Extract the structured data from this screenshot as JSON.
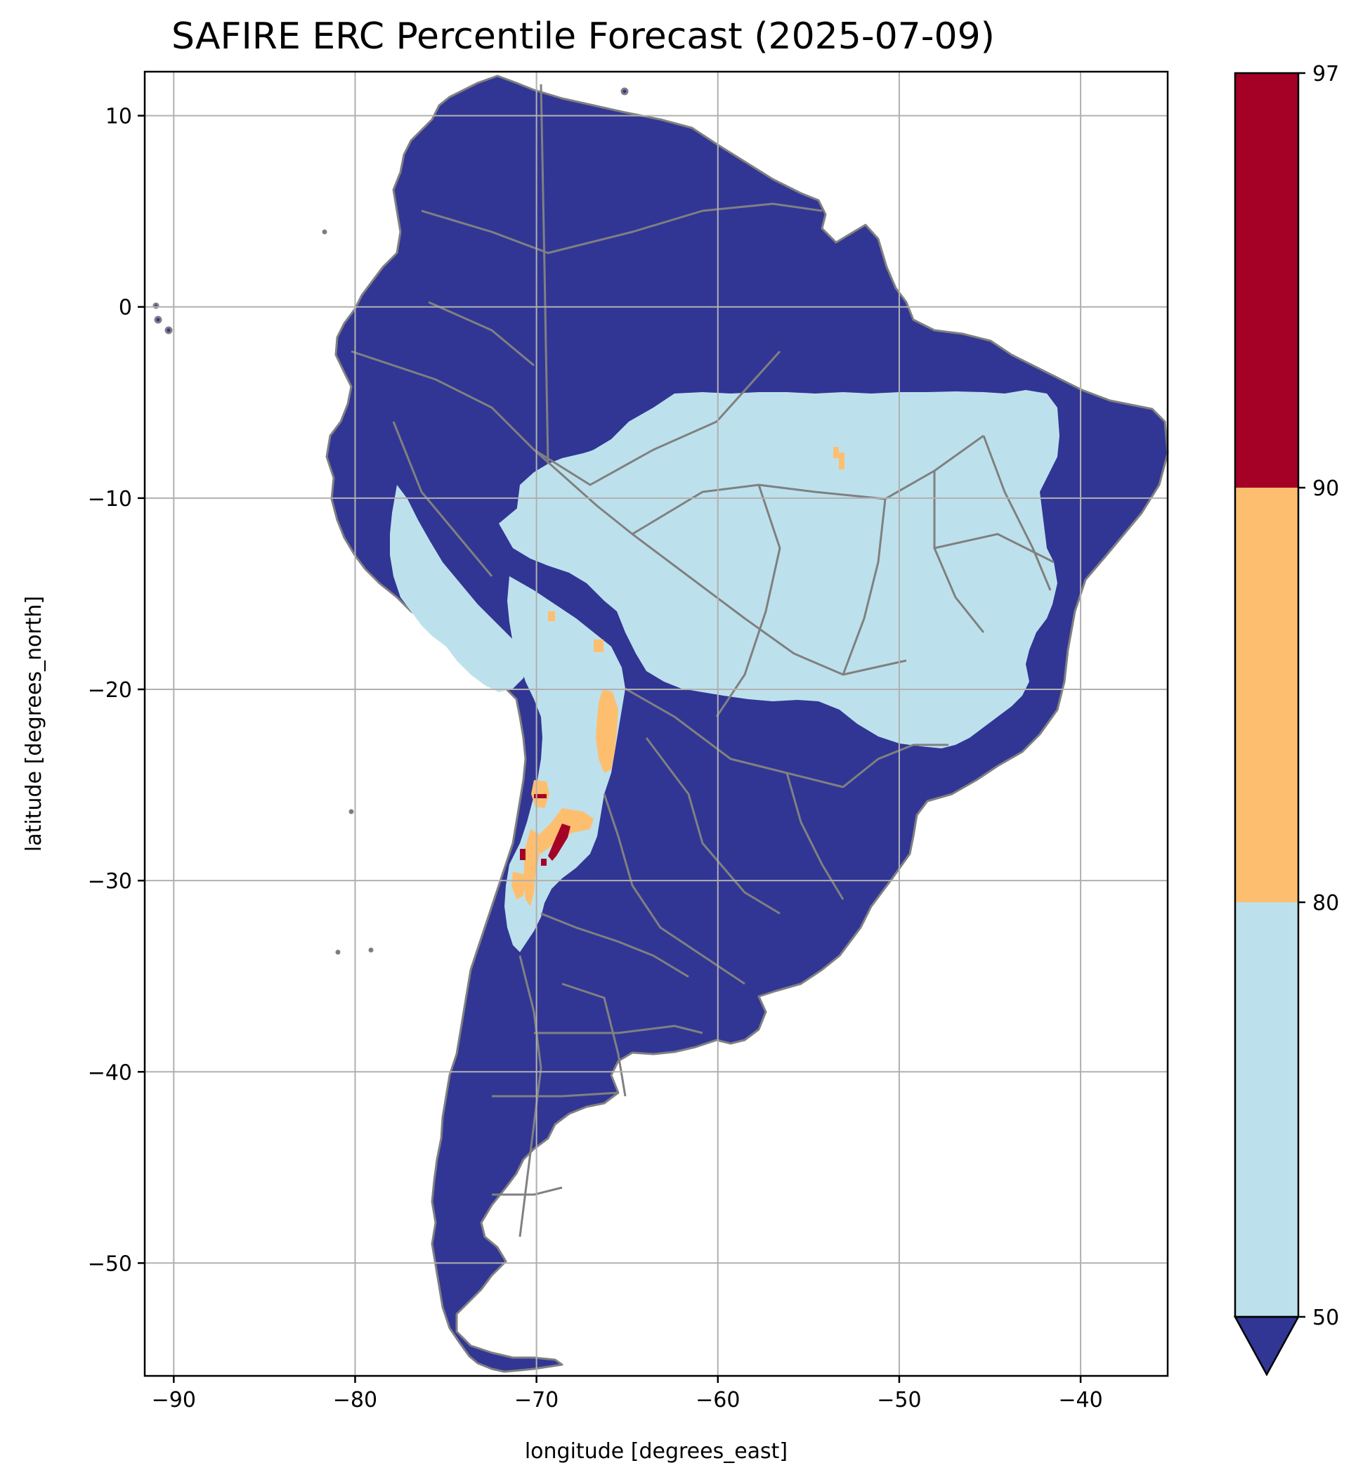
{
  "title": "SAFIRE ERC Percentile Forecast (2025-07-09)",
  "xlabel": "longitude [degrees_east]",
  "ylabel": "latitude [degrees_north]",
  "extent": {
    "lon": [
      -91.6,
      -35.2
    ],
    "lat": [
      -55.9,
      12.3
    ]
  },
  "x_ticks": [
    -90,
    -80,
    -70,
    -60,
    -50,
    -40
  ],
  "y_ticks": [
    10,
    0,
    -10,
    -20,
    -30,
    -40,
    -50
  ],
  "grid": true,
  "colors": {
    "below_50": "#313695",
    "p50_80": "#bde1ec",
    "p80_90": "#fdbf6f",
    "p90_97": "#a50026",
    "border": "#808080",
    "grid": "#b0b0b0"
  },
  "colorbar": {
    "ticks": [
      "97",
      "90",
      "80",
      "50"
    ],
    "bins": [
      {
        "from": 90,
        "to": 97,
        "color": "#a50026"
      },
      {
        "from": 80,
        "to": 90,
        "color": "#fdbf6f"
      },
      {
        "from": 50,
        "to": 80,
        "color": "#bde1ec"
      }
    ],
    "extend_min_color": "#313695"
  }
}
